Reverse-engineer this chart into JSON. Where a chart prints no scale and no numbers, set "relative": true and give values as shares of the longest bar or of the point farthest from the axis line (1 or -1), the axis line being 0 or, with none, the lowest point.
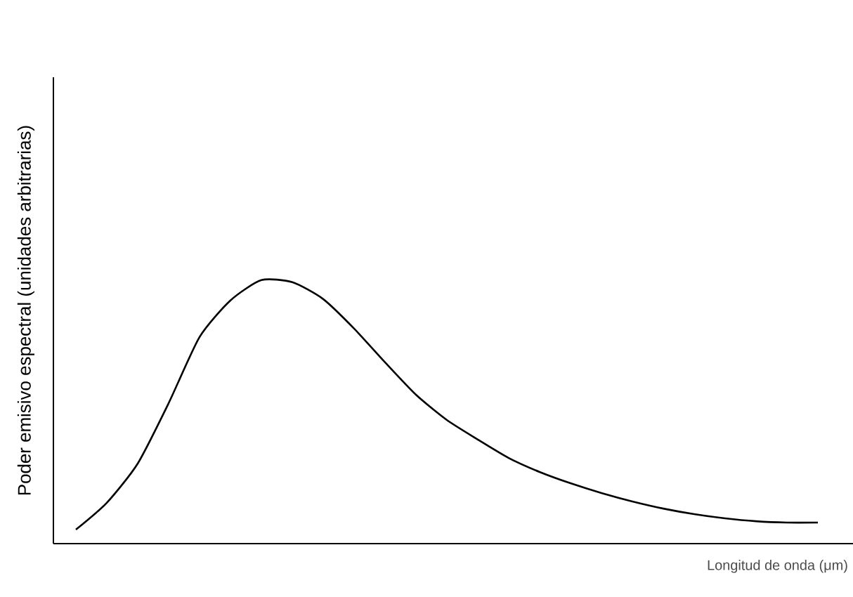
{
  "chart_data": {
    "type": "line",
    "xlabel": "Longitud de onda (μm)",
    "ylabel": "Poder emisivo espectral (unidades arbitrarias)",
    "relative": true,
    "marker": "none",
    "line_style": "solid",
    "categories": [
      null,
      null,
      null,
      null,
      null,
      null,
      null,
      null,
      null,
      null,
      null,
      null,
      null,
      null,
      null,
      null,
      null,
      null,
      null,
      null,
      null,
      null,
      null,
      null,
      null
    ],
    "series": [
      {
        "color": "#000000",
        "values": [
          0.053,
          0.155,
          0.304,
          0.533,
          0.784,
          0.923,
          1.0,
          0.992,
          0.928,
          0.816,
          0.688,
          0.565,
          0.469,
          0.395,
          0.325,
          0.272,
          0.229,
          0.192,
          0.16,
          0.133,
          0.112,
          0.096,
          0.085,
          0.08,
          0.08
        ]
      }
    ]
  }
}
